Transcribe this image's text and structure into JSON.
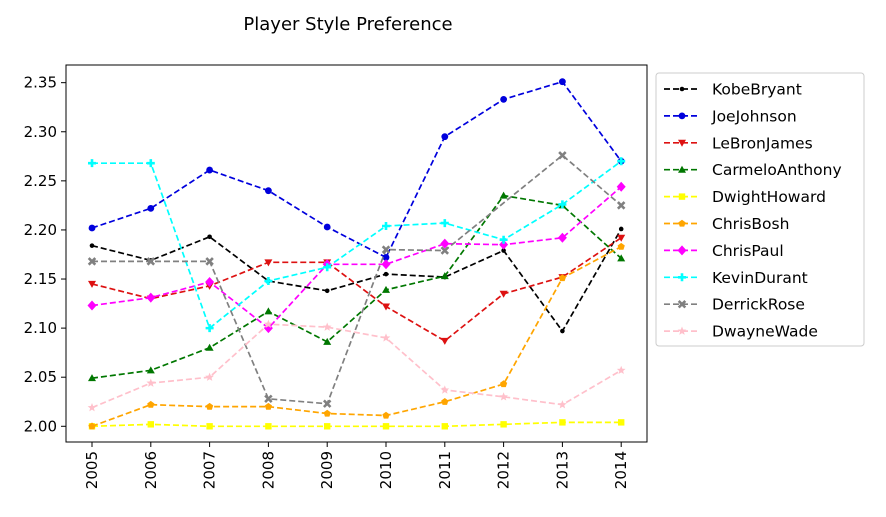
{
  "chart_data": {
    "type": "line",
    "title": "Player Style Preference",
    "xlabel": "",
    "ylabel": "",
    "x": [
      "2005",
      "2006",
      "2007",
      "2008",
      "2009",
      "2010",
      "2011",
      "2012",
      "2013",
      "2014"
    ],
    "ylim": [
      1.984,
      2.368
    ],
    "yticks": [
      2.0,
      2.05,
      2.1,
      2.15,
      2.2,
      2.25,
      2.3,
      2.35
    ],
    "grid": false,
    "legend_position": "outside-right",
    "series": [
      {
        "name": "KobeBryant",
        "color": "#000000",
        "marker": "point",
        "values": [
          2.184,
          2.169,
          2.193,
          2.148,
          2.138,
          2.155,
          2.152,
          2.179,
          2.097,
          2.201
        ]
      },
      {
        "name": "JoeJohnson",
        "color": "#0000dd",
        "marker": "circle",
        "values": [
          2.202,
          2.222,
          2.261,
          2.24,
          2.203,
          2.172,
          2.295,
          2.333,
          2.351,
          2.27
        ]
      },
      {
        "name": "LeBronJames",
        "color": "#dd1111",
        "marker": "triangle-down",
        "values": [
          2.145,
          2.13,
          2.143,
          2.167,
          2.167,
          2.122,
          2.087,
          2.135,
          2.152,
          2.192
        ]
      },
      {
        "name": "CarmeloAnthony",
        "color": "#007700",
        "marker": "triangle-up",
        "values": [
          2.049,
          2.057,
          2.08,
          2.117,
          2.086,
          2.139,
          2.153,
          2.235,
          2.225,
          2.171
        ]
      },
      {
        "name": "DwightHoward",
        "color": "#ffff00",
        "marker": "square",
        "values": [
          2.0,
          2.002,
          2.0,
          2.0,
          2.0,
          2.0,
          2.0,
          2.002,
          2.004,
          2.004
        ]
      },
      {
        "name": "ChrisBosh",
        "color": "#ffa500",
        "marker": "pentagon",
        "values": [
          2.0,
          2.022,
          2.02,
          2.02,
          2.013,
          2.011,
          2.025,
          2.043,
          2.151,
          2.183
        ]
      },
      {
        "name": "ChrisPaul",
        "color": "#ff00ff",
        "marker": "diamond",
        "values": [
          2.123,
          2.131,
          2.147,
          2.1,
          2.165,
          2.165,
          2.186,
          2.185,
          2.192,
          2.244
        ]
      },
      {
        "name": "KevinDurant",
        "color": "#00ffff",
        "marker": "plus",
        "values": [
          2.268,
          2.268,
          2.1,
          2.148,
          2.162,
          2.204,
          2.207,
          2.19,
          2.226,
          2.27
        ]
      },
      {
        "name": "DerrickRose",
        "color": "#808080",
        "marker": "x",
        "values": [
          2.168,
          2.168,
          2.168,
          2.028,
          2.023,
          2.18,
          2.179,
          null,
          2.276,
          2.225
        ]
      },
      {
        "name": "DwayneWade",
        "color": "#ffc0cb",
        "marker": "star",
        "values": [
          2.019,
          2.044,
          2.05,
          2.104,
          2.101,
          2.09,
          2.037,
          2.03,
          2.022,
          2.057
        ]
      }
    ]
  }
}
